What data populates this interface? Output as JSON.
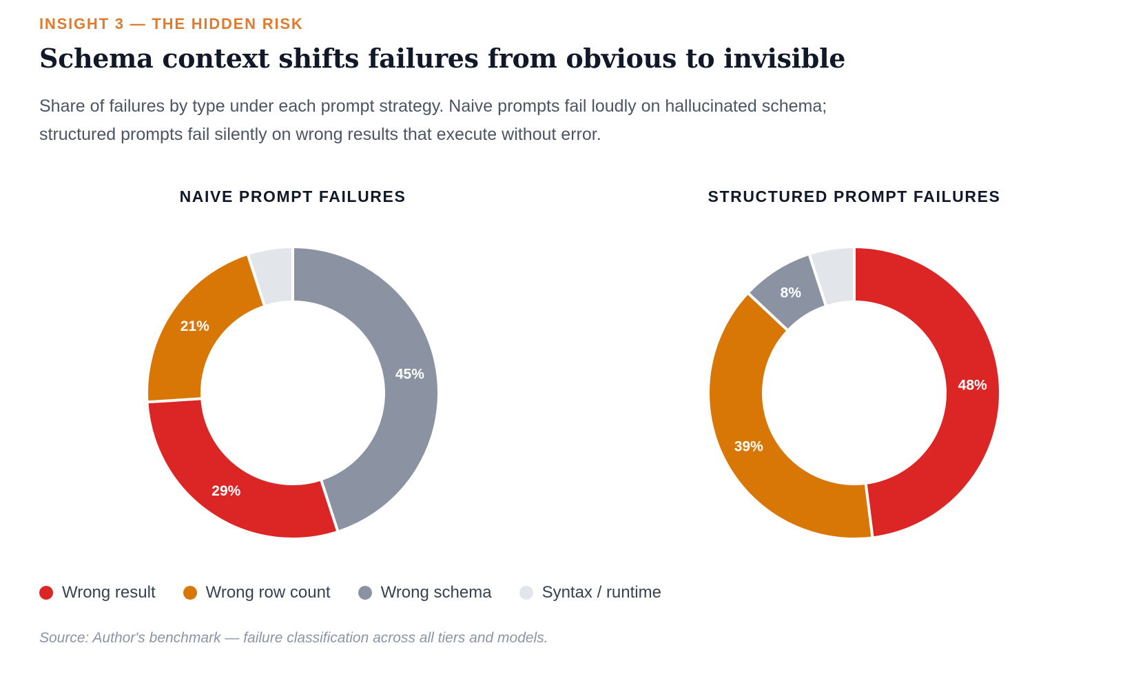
{
  "header": {
    "eyebrow": "INSIGHT 3 — THE HIDDEN RISK",
    "title": "Schema context shifts failures from obvious to invisible",
    "subtitle_line1": "Share of failures by type under each prompt strategy. Naive prompts fail loudly on hallucinated schema;",
    "subtitle_line2": "structured prompts fail silently on wrong results that execute without error."
  },
  "colors": {
    "wrong_result": "#dc2626",
    "wrong_row_count": "#d97706",
    "wrong_schema": "#8b93a3",
    "syntax_runtime": "#e2e5ea"
  },
  "chart_data": [
    {
      "type": "pie",
      "title": "NAIVE PROMPT FAILURES",
      "donut": true,
      "slices": [
        {
          "name": "Wrong schema",
          "value": 45,
          "label": "45%",
          "color": "#8b93a3"
        },
        {
          "name": "Wrong result",
          "value": 29,
          "label": "29%",
          "color": "#dc2626"
        },
        {
          "name": "Wrong row count",
          "value": 21,
          "label": "21%",
          "color": "#d97706"
        },
        {
          "name": "Syntax / runtime",
          "value": 5,
          "label": "",
          "color": "#e2e5ea"
        }
      ]
    },
    {
      "type": "pie",
      "title": "STRUCTURED PROMPT FAILURES",
      "donut": true,
      "slices": [
        {
          "name": "Wrong result",
          "value": 48,
          "label": "48%",
          "color": "#dc2626"
        },
        {
          "name": "Wrong row count",
          "value": 39,
          "label": "39%",
          "color": "#d97706"
        },
        {
          "name": "Wrong schema",
          "value": 8,
          "label": "8%",
          "color": "#8b93a3"
        },
        {
          "name": "Syntax / runtime",
          "value": 5,
          "label": "",
          "color": "#e2e5ea"
        }
      ]
    }
  ],
  "legend": [
    {
      "label": "Wrong result",
      "color": "#dc2626"
    },
    {
      "label": "Wrong row count",
      "color": "#d97706"
    },
    {
      "label": "Wrong schema",
      "color": "#8b93a3"
    },
    {
      "label": "Syntax / runtime",
      "color": "#e2e5ea"
    }
  ],
  "footer": {
    "source": "Source: Author's benchmark — failure classification across all tiers and models."
  }
}
